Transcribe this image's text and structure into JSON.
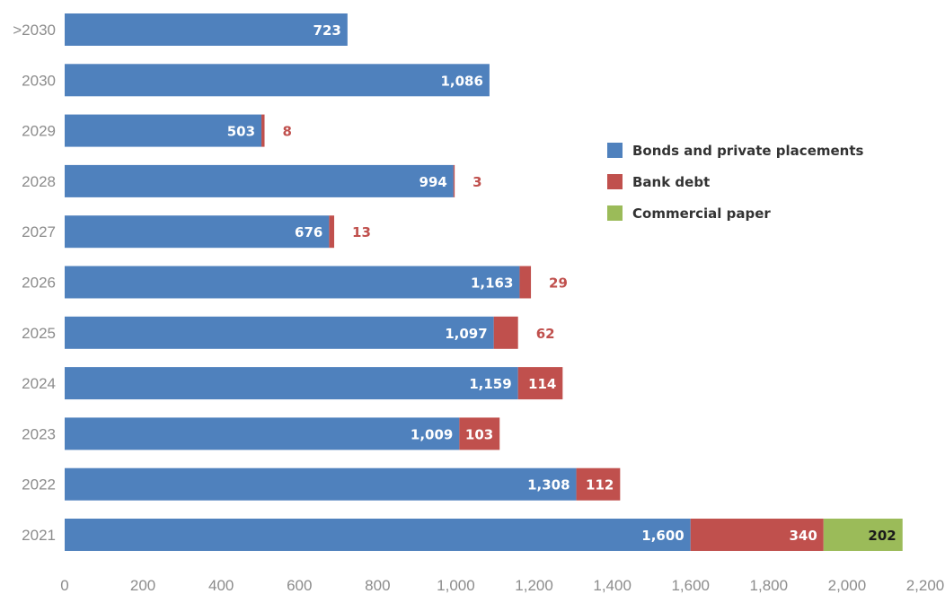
{
  "chart_data": {
    "type": "bar",
    "orientation": "horizontal",
    "stacked": true,
    "categories": [
      ">2030",
      "2030",
      "2029",
      "2028",
      "2027",
      "2026",
      "2025",
      "2024",
      "2023",
      "2022",
      "2021"
    ],
    "series": [
      {
        "name": "Bonds and private placements",
        "color": "#4f81bd",
        "values": [
          723,
          1086,
          503,
          994,
          676,
          1163,
          1097,
          1159,
          1009,
          1308,
          1600
        ],
        "labels": [
          "723",
          "1,086",
          "503",
          "994",
          "676",
          "1,163",
          "1,097",
          "1,159",
          "1,009",
          "1,308",
          "1,600"
        ]
      },
      {
        "name": "Bank debt",
        "color": "#c0504d",
        "values": [
          0,
          0,
          8,
          3,
          13,
          29,
          62,
          114,
          103,
          112,
          340
        ],
        "labels": [
          "",
          "",
          "8",
          "3",
          "13",
          "29",
          "62",
          "114",
          "103",
          "112",
          "340"
        ]
      },
      {
        "name": "Commercial paper",
        "color": "#9bbb59",
        "values": [
          0,
          0,
          0,
          0,
          0,
          0,
          0,
          0,
          0,
          0,
          202
        ],
        "labels": [
          "",
          "",
          "",
          "",
          "",
          "",
          "",
          "",
          "",
          "",
          "202"
        ]
      }
    ],
    "xlim": [
      0,
      2200
    ],
    "xticks": [
      0,
      200,
      400,
      600,
      800,
      1000,
      1200,
      1400,
      1600,
      1800,
      2000,
      2200
    ],
    "xtick_labels": [
      "0",
      "200",
      "400",
      "600",
      "800",
      "1,000",
      "1,200",
      "1,400",
      "1,600",
      "1,800",
      "2,000",
      "2,200"
    ],
    "grid": false,
    "legend_position": "right",
    "title": "",
    "xlabel": "",
    "ylabel": ""
  }
}
